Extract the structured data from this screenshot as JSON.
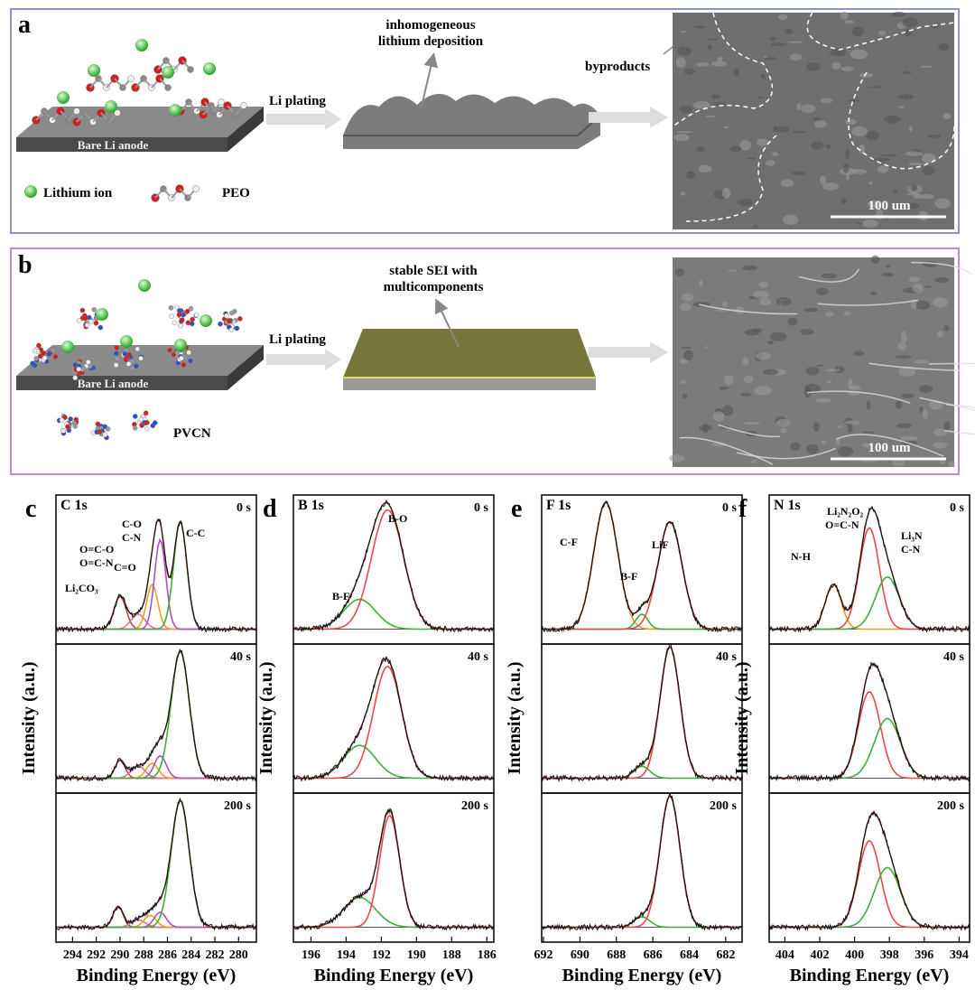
{
  "panel_a": {
    "label": "a",
    "anode": "Bare Li anode",
    "process": "Li plating",
    "annotation": [
      "inhomogeneous",
      "lithium deposition"
    ],
    "byproducts": "byproducts",
    "scale_bar": "100 um",
    "legend": [
      "Lithium ion",
      "PEO"
    ]
  },
  "panel_b": {
    "label": "b",
    "anode": "Bare Li anode",
    "process": "Li plating",
    "annotation": [
      "stable SEI with",
      "multicomponents"
    ],
    "scale_bar": "100 um",
    "legend": [
      "PVCN"
    ]
  },
  "xps": [
    {
      "label": "c",
      "element": "C 1s",
      "xlim": [
        295.4,
        278.5
      ],
      "xticks": [
        294,
        292,
        290,
        288,
        286,
        284,
        282,
        280
      ],
      "times": [
        "0 s",
        "40 s",
        "200 s"
      ],
      "peak_labels": [
        "Li₂CO₃",
        "O=C-O",
        "O=C-N",
        "C=O",
        "C-O",
        "C-N",
        "C-C"
      ],
      "x_label": "Binding Energy (eV)",
      "y_label": "Intensity (a.u.)"
    },
    {
      "label": "d",
      "element": "B 1s",
      "xlim": [
        197,
        185.6
      ],
      "xticks": [
        196,
        194,
        192,
        190,
        188,
        186
      ],
      "times": [
        "0 s",
        "40 s",
        "200 s"
      ],
      "peak_labels": [
        "B-O",
        "B-F"
      ],
      "x_label": "Binding Energy (eV)",
      "y_label": "Intensity (a.u.)"
    },
    {
      "label": "e",
      "element": "F 1s",
      "xlim": [
        692.1,
        681.1
      ],
      "xticks": [
        692,
        690,
        688,
        686,
        684,
        682
      ],
      "times": [
        "0 s",
        "40 s",
        "200 s"
      ],
      "peak_labels": [
        "C-F",
        "B-F",
        "LiF"
      ],
      "x_label": "Binding Energy (eV)",
      "y_label": "Intensity (a.u.)"
    },
    {
      "label": "f",
      "element": "N 1s",
      "xlim": [
        404.9,
        393.4
      ],
      "xticks": [
        404,
        402,
        400,
        398,
        396,
        394
      ],
      "times": [
        "0 s",
        "40 s",
        "200 s"
      ],
      "peak_labels": [
        "N-H",
        "Li₂N₂O₂",
        "O=C-N",
        "Li₃N",
        "C-N"
      ],
      "x_label": "Binding Energy (eV)",
      "y_label": "Intensity (a.u.)"
    }
  ]
}
